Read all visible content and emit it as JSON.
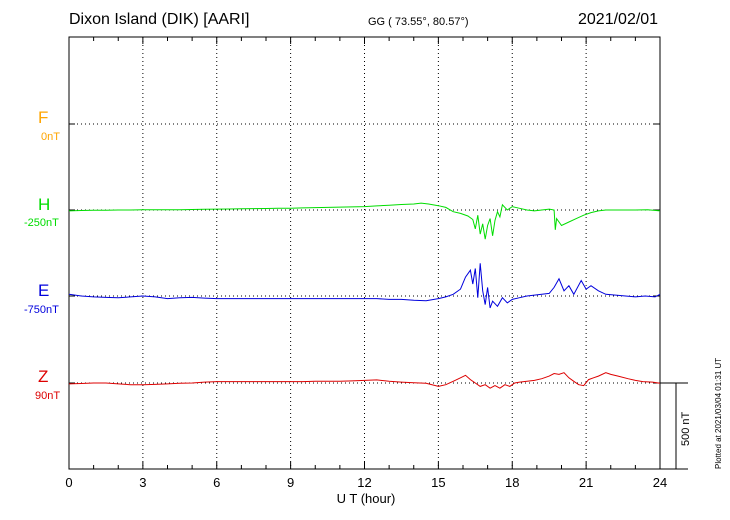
{
  "header": {
    "station": "Dixon Island (DIK)  [AARI]",
    "coords": "GG ( 73.55°,  80.57°)",
    "date": "2021/02/01"
  },
  "colors": {
    "F": "#ffa500",
    "H": "#00dd00",
    "E": "#0000dd",
    "Z": "#dd0000"
  },
  "scale_label": "500 nT",
  "plotted_note": "Plotted at 2021/03/04 01:31  UT",
  "chart_data": {
    "type": "line",
    "title": "Dixon Island (DIK)  [AARI]",
    "xlabel": "U T (hour)",
    "xlim": [
      0,
      24
    ],
    "x_ticks": [
      "0",
      "3",
      "6",
      "9",
      "12",
      "15",
      "18",
      "21",
      "24"
    ],
    "grid": true,
    "scale_bar_nT": 500,
    "series": [
      {
        "name": "F",
        "baseline_label": "0nT",
        "values": []
      },
      {
        "name": "H",
        "baseline_label": "-250nT",
        "values": [
          [
            0,
            -255
          ],
          [
            0.5,
            -253
          ],
          [
            1,
            -252
          ],
          [
            1.5,
            -251
          ],
          [
            2,
            -250
          ],
          [
            2.5,
            -250
          ],
          [
            3,
            -249
          ],
          [
            3.5,
            -248
          ],
          [
            4,
            -248
          ],
          [
            4.5,
            -248
          ],
          [
            5,
            -247
          ],
          [
            5.5,
            -246
          ],
          [
            6,
            -245
          ],
          [
            6.5,
            -244
          ],
          [
            7,
            -243
          ],
          [
            7.5,
            -242
          ],
          [
            8,
            -241
          ],
          [
            8.5,
            -240
          ],
          [
            9,
            -240
          ],
          [
            9.5,
            -238
          ],
          [
            10,
            -236
          ],
          [
            10.5,
            -235
          ],
          [
            11,
            -233
          ],
          [
            11.5,
            -232
          ],
          [
            12,
            -230
          ],
          [
            12.5,
            -226
          ],
          [
            13,
            -222
          ],
          [
            13.5,
            -218
          ],
          [
            14,
            -215
          ],
          [
            14.3,
            -210
          ],
          [
            14.6,
            -215
          ],
          [
            15,
            -225
          ],
          [
            15.3,
            -235
          ],
          [
            15.6,
            -260
          ],
          [
            15.9,
            -270
          ],
          [
            16.2,
            -285
          ],
          [
            16.4,
            -305
          ],
          [
            16.5,
            -360
          ],
          [
            16.6,
            -280
          ],
          [
            16.7,
            -390
          ],
          [
            16.8,
            -330
          ],
          [
            16.9,
            -420
          ],
          [
            17.0,
            -340
          ],
          [
            17.1,
            -300
          ],
          [
            17.2,
            -400
          ],
          [
            17.3,
            -310
          ],
          [
            17.4,
            -260
          ],
          [
            17.5,
            -290
          ],
          [
            17.6,
            -220
          ],
          [
            17.8,
            -250
          ],
          [
            18.0,
            -230
          ],
          [
            18.3,
            -240
          ],
          [
            18.6,
            -250
          ],
          [
            18.9,
            -255
          ],
          [
            19.2,
            -250
          ],
          [
            19.5,
            -245
          ],
          [
            19.7,
            -250
          ],
          [
            19.75,
            -365
          ],
          [
            19.8,
            -300
          ],
          [
            20.0,
            -340
          ],
          [
            20.3,
            -320
          ],
          [
            20.6,
            -300
          ],
          [
            20.9,
            -280
          ],
          [
            21.2,
            -265
          ],
          [
            21.5,
            -255
          ],
          [
            21.8,
            -250
          ],
          [
            22.2,
            -250
          ],
          [
            22.6,
            -250
          ],
          [
            23.0,
            -250
          ],
          [
            23.5,
            -248
          ],
          [
            24,
            -255
          ]
        ]
      },
      {
        "name": "E",
        "baseline_label": "-750nT",
        "values": [
          [
            0,
            -740
          ],
          [
            0.5,
            -750
          ],
          [
            1,
            -755
          ],
          [
            1.5,
            -758
          ],
          [
            2,
            -760
          ],
          [
            2.5,
            -755
          ],
          [
            3,
            -750
          ],
          [
            3.5,
            -755
          ],
          [
            4,
            -765
          ],
          [
            4.5,
            -760
          ],
          [
            5,
            -758
          ],
          [
            5.5,
            -762
          ],
          [
            6,
            -765
          ],
          [
            6.5,
            -765
          ],
          [
            7,
            -765
          ],
          [
            7.5,
            -765
          ],
          [
            8,
            -765
          ],
          [
            8.5,
            -765
          ],
          [
            9,
            -765
          ],
          [
            9.5,
            -765
          ],
          [
            10,
            -765
          ],
          [
            10.5,
            -765
          ],
          [
            11,
            -765
          ],
          [
            11.5,
            -765
          ],
          [
            12,
            -765
          ],
          [
            12.5,
            -765
          ],
          [
            13,
            -770
          ],
          [
            13.5,
            -770
          ],
          [
            14,
            -775
          ],
          [
            14.5,
            -778
          ],
          [
            15,
            -765
          ],
          [
            15.3,
            -755
          ],
          [
            15.6,
            -740
          ],
          [
            15.9,
            -710
          ],
          [
            16.1,
            -640
          ],
          [
            16.3,
            -600
          ],
          [
            16.4,
            -680
          ],
          [
            16.5,
            -590
          ],
          [
            16.6,
            -760
          ],
          [
            16.7,
            -560
          ],
          [
            16.8,
            -720
          ],
          [
            16.9,
            -800
          ],
          [
            17.0,
            -700
          ],
          [
            17.1,
            -820
          ],
          [
            17.2,
            -780
          ],
          [
            17.4,
            -810
          ],
          [
            17.6,
            -760
          ],
          [
            17.8,
            -790
          ],
          [
            18.0,
            -770
          ],
          [
            18.3,
            -760
          ],
          [
            18.6,
            -750
          ],
          [
            18.9,
            -745
          ],
          [
            19.2,
            -740
          ],
          [
            19.5,
            -735
          ],
          [
            19.7,
            -700
          ],
          [
            19.9,
            -650
          ],
          [
            20.1,
            -720
          ],
          [
            20.3,
            -690
          ],
          [
            20.5,
            -740
          ],
          [
            20.8,
            -660
          ],
          [
            21.0,
            -710
          ],
          [
            21.2,
            -690
          ],
          [
            21.5,
            -720
          ],
          [
            21.8,
            -740
          ],
          [
            22.2,
            -745
          ],
          [
            22.6,
            -750
          ],
          [
            23.0,
            -755
          ],
          [
            23.4,
            -750
          ],
          [
            23.8,
            -755
          ],
          [
            24,
            -740
          ]
        ]
      },
      {
        "name": "Z",
        "baseline_label": "90nT",
        "values": [
          [
            0,
            85
          ],
          [
            0.5,
            87
          ],
          [
            1,
            90
          ],
          [
            1.5,
            90
          ],
          [
            2,
            85
          ],
          [
            2.5,
            80
          ],
          [
            3,
            80
          ],
          [
            3.5,
            82
          ],
          [
            4,
            85
          ],
          [
            4.5,
            88
          ],
          [
            5,
            90
          ],
          [
            5.5,
            95
          ],
          [
            6,
            98
          ],
          [
            6.5,
            98
          ],
          [
            7,
            98
          ],
          [
            7.5,
            98
          ],
          [
            8,
            98
          ],
          [
            8.5,
            98
          ],
          [
            9,
            98
          ],
          [
            9.5,
            98
          ],
          [
            10,
            100
          ],
          [
            10.5,
            100
          ],
          [
            11,
            100
          ],
          [
            11.5,
            102
          ],
          [
            12,
            105
          ],
          [
            12.5,
            108
          ],
          [
            13,
            100
          ],
          [
            13.5,
            95
          ],
          [
            14,
            92
          ],
          [
            14.5,
            88
          ],
          [
            15,
            70
          ],
          [
            15.3,
            80
          ],
          [
            15.6,
            100
          ],
          [
            15.9,
            120
          ],
          [
            16.1,
            135
          ],
          [
            16.3,
            110
          ],
          [
            16.5,
            90
          ],
          [
            16.7,
            70
          ],
          [
            16.9,
            80
          ],
          [
            17.1,
            60
          ],
          [
            17.3,
            75
          ],
          [
            17.5,
            60
          ],
          [
            17.7,
            80
          ],
          [
            17.9,
            70
          ],
          [
            18.1,
            90
          ],
          [
            18.3,
            95
          ],
          [
            18.6,
            100
          ],
          [
            18.9,
            105
          ],
          [
            19.2,
            115
          ],
          [
            19.5,
            130
          ],
          [
            19.7,
            145
          ],
          [
            19.9,
            140
          ],
          [
            20.1,
            150
          ],
          [
            20.3,
            120
          ],
          [
            20.5,
            100
          ],
          [
            20.7,
            80
          ],
          [
            20.9,
            75
          ],
          [
            21.1,
            110
          ],
          [
            21.3,
            120
          ],
          [
            21.5,
            130
          ],
          [
            21.8,
            150
          ],
          [
            22.0,
            140
          ],
          [
            22.3,
            130
          ],
          [
            22.7,
            115
          ],
          [
            23.0,
            105
          ],
          [
            23.3,
            98
          ],
          [
            23.7,
            95
          ],
          [
            24,
            88
          ]
        ]
      }
    ]
  }
}
